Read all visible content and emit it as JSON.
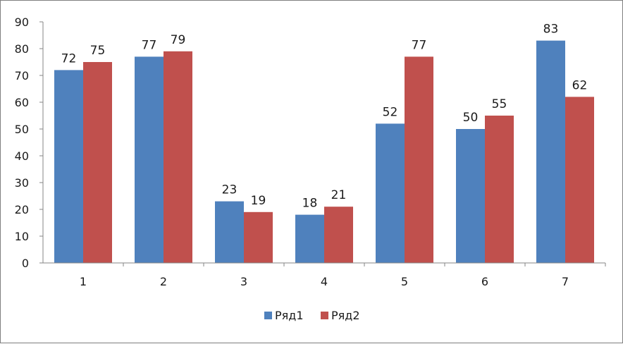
{
  "chart_data": {
    "type": "bar",
    "title": "",
    "xlabel": "",
    "ylabel": "",
    "categories": [
      "1",
      "2",
      "3",
      "4",
      "5",
      "6",
      "7"
    ],
    "series": [
      {
        "name": "Ряд1",
        "color": "#4f81bd",
        "values": [
          72,
          77,
          23,
          18,
          52,
          50,
          83
        ]
      },
      {
        "name": "Ряд2",
        "color": "#c0504d",
        "values": [
          75,
          79,
          19,
          21,
          77,
          55,
          62
        ]
      }
    ],
    "ylim": [
      0,
      90
    ],
    "yticks": [
      "0",
      "10",
      "20",
      "30",
      "40",
      "50",
      "60",
      "70",
      "80",
      "90"
    ],
    "data_labels": true,
    "grid": false,
    "legend_position": "bottom"
  }
}
